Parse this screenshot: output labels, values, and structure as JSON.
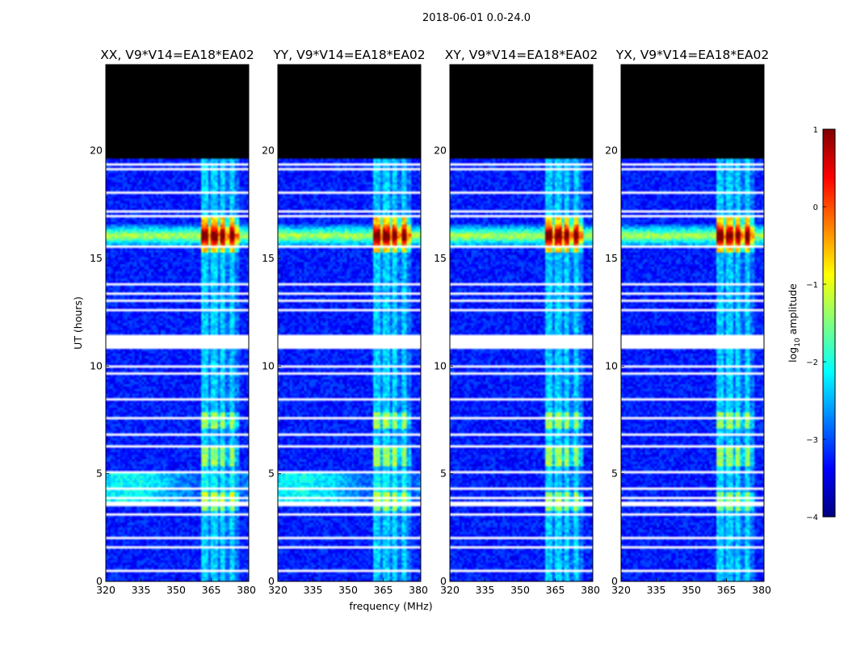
{
  "chart_data": {
    "type": "heatmap",
    "suptitle": "2018-06-01 0.0-24.0",
    "xlabel": "frequency (MHz)",
    "ylabel": "UT (hours)",
    "xlim": [
      320,
      381
    ],
    "ylim": [
      0,
      24
    ],
    "xticks": [
      320,
      335,
      350,
      365,
      380
    ],
    "yticks": [
      0,
      5,
      10,
      15,
      20
    ],
    "panels": [
      {
        "title": "XX, V9*V14=EA18*EA02"
      },
      {
        "title": "YY, V9*V14=EA18*EA02"
      },
      {
        "title": "XY, V9*V14=EA18*EA02"
      },
      {
        "title": "YX, V9*V14=EA18*EA02"
      }
    ],
    "colorbar": {
      "label_prefix": "log",
      "label_sub": "10",
      "label_suffix": " amplitude",
      "vmin": -4,
      "vmax": 1,
      "ticks": [
        1,
        0,
        -1,
        -2,
        -3,
        -4
      ],
      "tick_labels": [
        "1",
        "0",
        "−1",
        "−2",
        "−3",
        "−4"
      ],
      "colors": [
        "#00007f",
        "#0000ff",
        "#007fff",
        "#00ffff",
        "#7fff7f",
        "#ffff00",
        "#ff7f00",
        "#ff0000",
        "#7f0000"
      ]
    },
    "no_data_hours": [
      [
        19.6,
        24.0
      ]
    ],
    "flagged_hours": [
      [
        0.45,
        0.52
      ],
      [
        1.55,
        1.62
      ],
      [
        1.95,
        2.03
      ],
      [
        3.05,
        3.12
      ],
      [
        3.48,
        3.55
      ],
      [
        3.62,
        3.68
      ],
      [
        3.85,
        3.92
      ],
      [
        4.3,
        4.38
      ],
      [
        5.05,
        5.12
      ],
      [
        6.2,
        6.3
      ],
      [
        6.5,
        6.58
      ],
      [
        6.78,
        6.85
      ],
      [
        7.15,
        7.22
      ],
      [
        7.55,
        7.6
      ],
      [
        8.15,
        8.22
      ],
      [
        8.4,
        8.48
      ],
      [
        8.6,
        8.65
      ],
      [
        8.9,
        8.97
      ],
      [
        9.6,
        9.68
      ],
      [
        9.95,
        10.02
      ],
      [
        10.8,
        11.45
      ],
      [
        12.6,
        12.7
      ],
      [
        12.95,
        13.05
      ],
      [
        13.3,
        13.38
      ],
      [
        13.8,
        13.88
      ],
      [
        14.05,
        14.12
      ],
      [
        15.5,
        15.57
      ],
      [
        16.9,
        16.98
      ],
      [
        17.15,
        17.22
      ],
      [
        18.05,
        18.12
      ],
      [
        18.5,
        18.58
      ],
      [
        19.05,
        19.15
      ],
      [
        19.35,
        19.42
      ]
    ]
  }
}
